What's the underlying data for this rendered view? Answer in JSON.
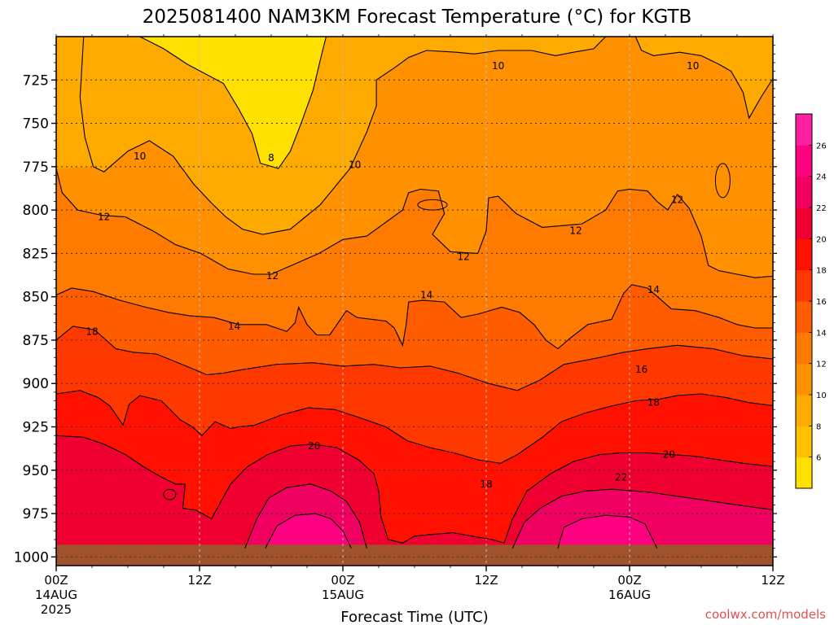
{
  "chart_data": {
    "type": "heatmap",
    "title": "2025081400 NAM3KM Forecast Temperature (°C) for KGTB",
    "xlabel": "Forecast Time (UTC)",
    "ylabel": "",
    "y_axis": {
      "scale": "pressure (hPa), inverted",
      "range": [
        1005,
        700
      ],
      "ticks": [
        725,
        750,
        775,
        800,
        825,
        850,
        875,
        900,
        925,
        950,
        975,
        1000
      ]
    },
    "x_axis": {
      "range_hours": [
        0,
        60
      ],
      "ticks": [
        {
          "hour": 0,
          "label": "00Z",
          "sub": "14AUG",
          "sub2": "2025"
        },
        {
          "hour": 12,
          "label": "12Z",
          "sub": "",
          "sub2": ""
        },
        {
          "hour": 24,
          "label": "00Z",
          "sub": "15AUG",
          "sub2": ""
        },
        {
          "hour": 36,
          "label": "12Z",
          "sub": "",
          "sub2": ""
        },
        {
          "hour": 48,
          "label": "00Z",
          "sub": "16AUG",
          "sub2": ""
        },
        {
          "hour": 60,
          "label": "12Z",
          "sub": "",
          "sub2": ""
        }
      ]
    },
    "grid": true,
    "colorbar": {
      "placement": "right",
      "levels": [
        6,
        8,
        10,
        12,
        14,
        16,
        18,
        20,
        22,
        24,
        26
      ],
      "colors": [
        "#ffe000",
        "#ffc000",
        "#ffaa00",
        "#ff9000",
        "#ff7a00",
        "#ff5c00",
        "#ff3800",
        "#ff1000",
        "#f00030",
        "#f00060",
        "#ff0080",
        "#ff20a0"
      ]
    },
    "contour_labels": [
      {
        "hour": 37.0,
        "p": 717,
        "value": "10"
      },
      {
        "hour": 53.3,
        "p": 717,
        "value": "10"
      },
      {
        "hour": 7.0,
        "p": 769,
        "value": "10"
      },
      {
        "hour": 18.0,
        "p": 770,
        "value": "8"
      },
      {
        "hour": 25.0,
        "p": 774,
        "value": "10"
      },
      {
        "hour": 4.0,
        "p": 804,
        "value": "12"
      },
      {
        "hour": 52.0,
        "p": 794,
        "value": "12"
      },
      {
        "hour": 43.5,
        "p": 812,
        "value": "12"
      },
      {
        "hour": 34.1,
        "p": 827,
        "value": "12"
      },
      {
        "hour": 18.1,
        "p": 838,
        "value": "12"
      },
      {
        "hour": 31.0,
        "p": 849,
        "value": "14"
      },
      {
        "hour": 50.0,
        "p": 846,
        "value": "14"
      },
      {
        "hour": 14.9,
        "p": 867,
        "value": "14"
      },
      {
        "hour": 3.0,
        "p": 870,
        "value": "18"
      },
      {
        "hour": 49.0,
        "p": 892,
        "value": "16"
      },
      {
        "hour": 50.0,
        "p": 911,
        "value": "18"
      },
      {
        "hour": 21.6,
        "p": 936,
        "value": "20"
      },
      {
        "hour": 51.3,
        "p": 941,
        "value": "20"
      },
      {
        "hour": 47.3,
        "p": 954,
        "value": "22"
      },
      {
        "hour": 36.0,
        "p": 958,
        "value": "18"
      }
    ],
    "terrain_below_hpa": 993
  },
  "credit": "coolwx.com/models",
  "colors": {
    "terrain": "#a0522d",
    "contour": "#000000",
    "grid": "#606060"
  }
}
